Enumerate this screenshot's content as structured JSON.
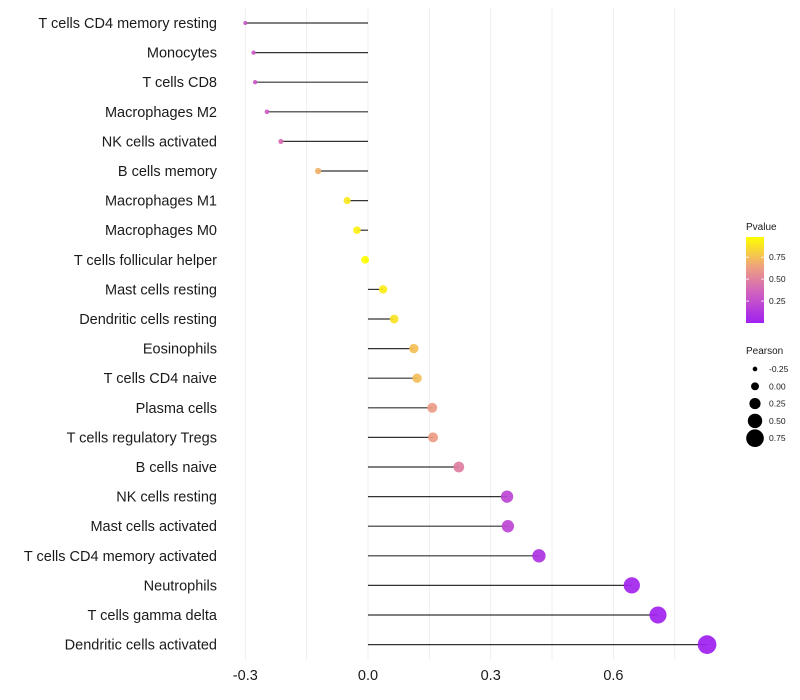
{
  "chart_data": {
    "type": "lollipop",
    "title": "",
    "xlabel": "",
    "ylabel": "",
    "xlim": [
      -0.32,
      0.84
    ],
    "x_ticks": [
      -0.3,
      0.0,
      0.3,
      0.6
    ],
    "x_tick_labels": [
      "-0.3",
      "0.0",
      "0.3",
      "0.6"
    ],
    "grid": true,
    "categories": [
      "T cells CD4 memory resting",
      "Monocytes",
      "T cells CD8",
      "Macrophages M2",
      "NK cells activated",
      "B cells memory",
      "Macrophages M1",
      "Macrophages M0",
      "T cells follicular helper",
      "Mast cells resting",
      "Dendritic cells resting",
      "Eosinophils",
      "T cells CD4 naive",
      "Plasma cells",
      "T cells regulatory  Tregs ",
      "B cells naive",
      "NK cells resting",
      "Mast cells activated",
      "T cells CD4 memory activated",
      "Neutrophils",
      "T cells gamma delta",
      "Dendritic cells activated"
    ],
    "pearson": [
      -0.3,
      -0.28,
      -0.276,
      -0.247,
      -0.213,
      -0.122,
      -0.051,
      -0.027,
      -0.007,
      0.037,
      0.064,
      0.112,
      0.12,
      0.157,
      0.159,
      0.222,
      0.34,
      0.342,
      0.418,
      0.645,
      0.709,
      0.829
    ],
    "pvalue": [
      0.3,
      0.3,
      0.3,
      0.33,
      0.4,
      0.7,
      0.9,
      0.93,
      0.98,
      0.92,
      0.88,
      0.75,
      0.74,
      0.62,
      0.62,
      0.48,
      0.2,
      0.2,
      0.1,
      0.02,
      0.01,
      0.0
    ],
    "legend": {
      "color": {
        "title": "Pvalue",
        "ticks": [
          0.25,
          0.5,
          0.75
        ],
        "tick_labels": [
          "0.25",
          "0.50",
          "0.75"
        ],
        "range": [
          0.0,
          0.98
        ],
        "low_color": "#a020f0",
        "high_color": "#ffff00"
      },
      "size": {
        "title": "Pearson",
        "values": [
          -0.25,
          0.0,
          0.25,
          0.5,
          0.75
        ],
        "labels": [
          "-0.25",
          "0.00",
          "0.25",
          "0.50",
          "0.75"
        ]
      },
      "placement": "right"
    }
  }
}
